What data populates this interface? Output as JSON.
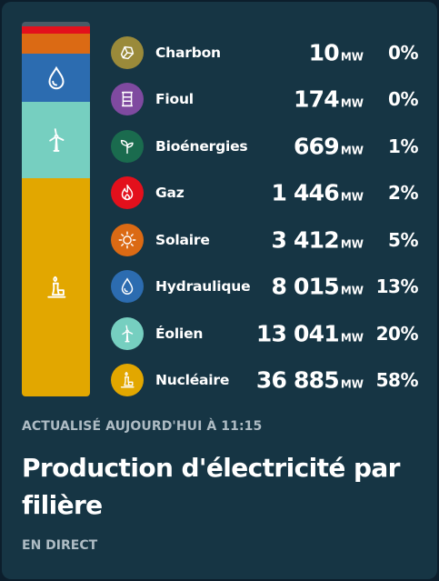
{
  "card": {
    "updated_label": "ACTUALISÉ AUJOURD'HUI À 11:15",
    "title": "Production d'électricité par filière",
    "live_label": "EN DIRECT"
  },
  "sources": [
    {
      "name": "Charbon",
      "value": "10",
      "unit": "MW",
      "pct": "0%",
      "share": 0.0,
      "color": "#9a8a3a",
      "icon": "coal-icon"
    },
    {
      "name": "Fioul",
      "value": "174",
      "unit": "MW",
      "pct": "0%",
      "share": 0.0,
      "color": "#7f4aa0",
      "icon": "oil-barrel-icon"
    },
    {
      "name": "Bioénergies",
      "value": "669",
      "unit": "MW",
      "pct": "1%",
      "share": 0.01,
      "color": "#1a6b4e",
      "icon": "sprout-icon"
    },
    {
      "name": "Gaz",
      "value": "1 446",
      "unit": "MW",
      "pct": "2%",
      "share": 0.02,
      "color": "#e3101c",
      "icon": "flame-icon"
    },
    {
      "name": "Solaire",
      "value": "3 412",
      "unit": "MW",
      "pct": "5%",
      "share": 0.05,
      "color": "#db6a14",
      "icon": "sun-icon"
    },
    {
      "name": "Hydraulique",
      "value": "8 015",
      "unit": "MW",
      "pct": "13%",
      "share": 0.13,
      "color": "#2c6cb0",
      "icon": "water-drop-icon"
    },
    {
      "name": "Éolien",
      "value": "13 041",
      "unit": "MW",
      "pct": "20%",
      "share": 0.2,
      "color": "#76cfc0",
      "icon": "wind-turbine-icon"
    },
    {
      "name": "Nucléaire",
      "value": "36 885",
      "unit": "MW",
      "pct": "58%",
      "share": 0.58,
      "color": "#e2a700",
      "icon": "nuclear-plant-icon"
    }
  ]
}
